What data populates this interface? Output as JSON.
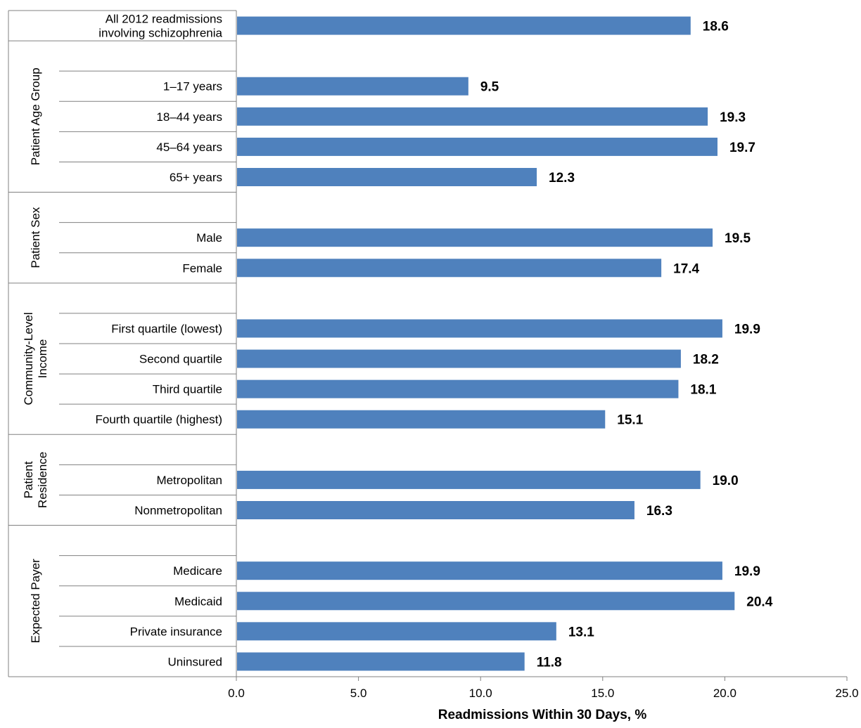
{
  "chart_data": {
    "type": "bar",
    "orientation": "horizontal",
    "xlabel": "Readmissions Within 30 Days, %",
    "xlim": [
      0,
      25
    ],
    "xticks": [
      "0.0",
      "5.0",
      "10.0",
      "15.0",
      "20.0",
      "25.0"
    ],
    "grid": false,
    "legend": "none",
    "bar_color": "#4f81bd",
    "groups": [
      {
        "title_lines": [],
        "rows": [
          {
            "label_lines": [
              "All 2012 readmissions",
              "involving schizophrenia"
            ],
            "value": 18.6,
            "value_label": "18.6"
          }
        ]
      },
      {
        "title_lines": [
          "Patient Age Group"
        ],
        "rows": [
          {
            "label_lines": [
              "1–17 years"
            ],
            "value": 9.5,
            "value_label": "9.5"
          },
          {
            "label_lines": [
              "18–44 years"
            ],
            "value": 19.3,
            "value_label": "19.3"
          },
          {
            "label_lines": [
              "45–64 years"
            ],
            "value": 19.7,
            "value_label": "19.7"
          },
          {
            "label_lines": [
              "65+ years"
            ],
            "value": 12.3,
            "value_label": "12.3"
          }
        ]
      },
      {
        "title_lines": [
          "Patient Sex"
        ],
        "rows": [
          {
            "label_lines": [
              "Male"
            ],
            "value": 19.5,
            "value_label": "19.5"
          },
          {
            "label_lines": [
              "Female"
            ],
            "value": 17.4,
            "value_label": "17.4"
          }
        ]
      },
      {
        "title_lines": [
          "Community-Level",
          "Income"
        ],
        "rows": [
          {
            "label_lines": [
              "First quartile (lowest)"
            ],
            "value": 19.9,
            "value_label": "19.9"
          },
          {
            "label_lines": [
              "Second quartile"
            ],
            "value": 18.2,
            "value_label": "18.2"
          },
          {
            "label_lines": [
              "Third quartile"
            ],
            "value": 18.1,
            "value_label": "18.1"
          },
          {
            "label_lines": [
              "Fourth quartile (highest)"
            ],
            "value": 15.1,
            "value_label": "15.1"
          }
        ]
      },
      {
        "title_lines": [
          "Patient",
          "Residence"
        ],
        "rows": [
          {
            "label_lines": [
              "Metropolitan"
            ],
            "value": 19.0,
            "value_label": "19.0"
          },
          {
            "label_lines": [
              "Nonmetropolitan"
            ],
            "value": 16.3,
            "value_label": "16.3"
          }
        ]
      },
      {
        "title_lines": [
          "Expected Payer"
        ],
        "rows": [
          {
            "label_lines": [
              "Medicare"
            ],
            "value": 19.9,
            "value_label": "19.9"
          },
          {
            "label_lines": [
              "Medicaid"
            ],
            "value": 20.4,
            "value_label": "20.4"
          },
          {
            "label_lines": [
              "Private insurance"
            ],
            "value": 13.1,
            "value_label": "13.1"
          },
          {
            "label_lines": [
              "Uninsured"
            ],
            "value": 11.8,
            "value_label": "11.8"
          }
        ]
      }
    ]
  }
}
